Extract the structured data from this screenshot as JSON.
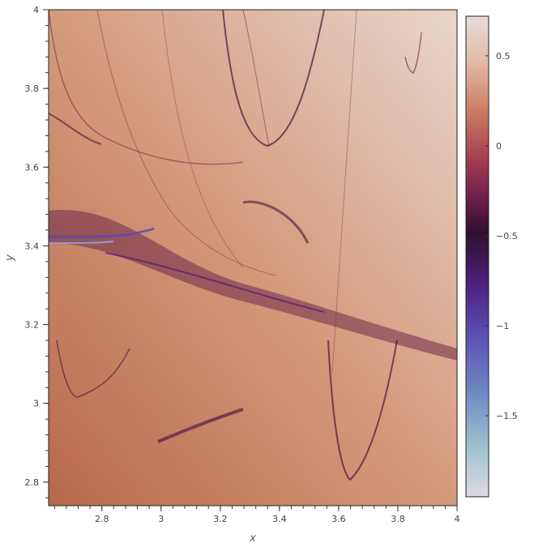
{
  "chart_data": {
    "type": "heatmap",
    "title": "",
    "xlabel": "x",
    "ylabel": "y",
    "xlim": [
      2.62,
      4.0
    ],
    "ylim": [
      2.74,
      4.0
    ],
    "x_ticks": [
      2.8,
      3,
      3.2,
      3.4,
      3.6,
      3.8,
      4
    ],
    "x_tick_labels": [
      "2.8",
      "3",
      "3.2",
      "3.4",
      "3.6",
      "3.8",
      "4"
    ],
    "y_ticks": [
      2.8,
      3,
      3.2,
      3.4,
      3.6,
      3.8,
      4
    ],
    "y_tick_labels": [
      "2.8",
      "3",
      "3.2",
      "3.4",
      "3.6",
      "3.8",
      "4"
    ],
    "grid": false,
    "colorbar": {
      "range": [
        -1.95,
        0.72
      ],
      "ticks": [
        0.5,
        0,
        -0.5,
        -1,
        -1.5
      ],
      "tick_labels": [
        "0.5",
        "0",
        "−0.5",
        "−1",
        "−1.5"
      ],
      "colormap": "twilight-shifted",
      "colors": [
        "#dfd9e2",
        "#a0c3cc",
        "#6d88c2",
        "#5a48b0",
        "#4b1e78",
        "#30102c",
        "#6e1e4a",
        "#a23c52",
        "#cc7a62",
        "#e1b8a2",
        "#e7dcda"
      ]
    },
    "background_color": "#d4a080"
  }
}
